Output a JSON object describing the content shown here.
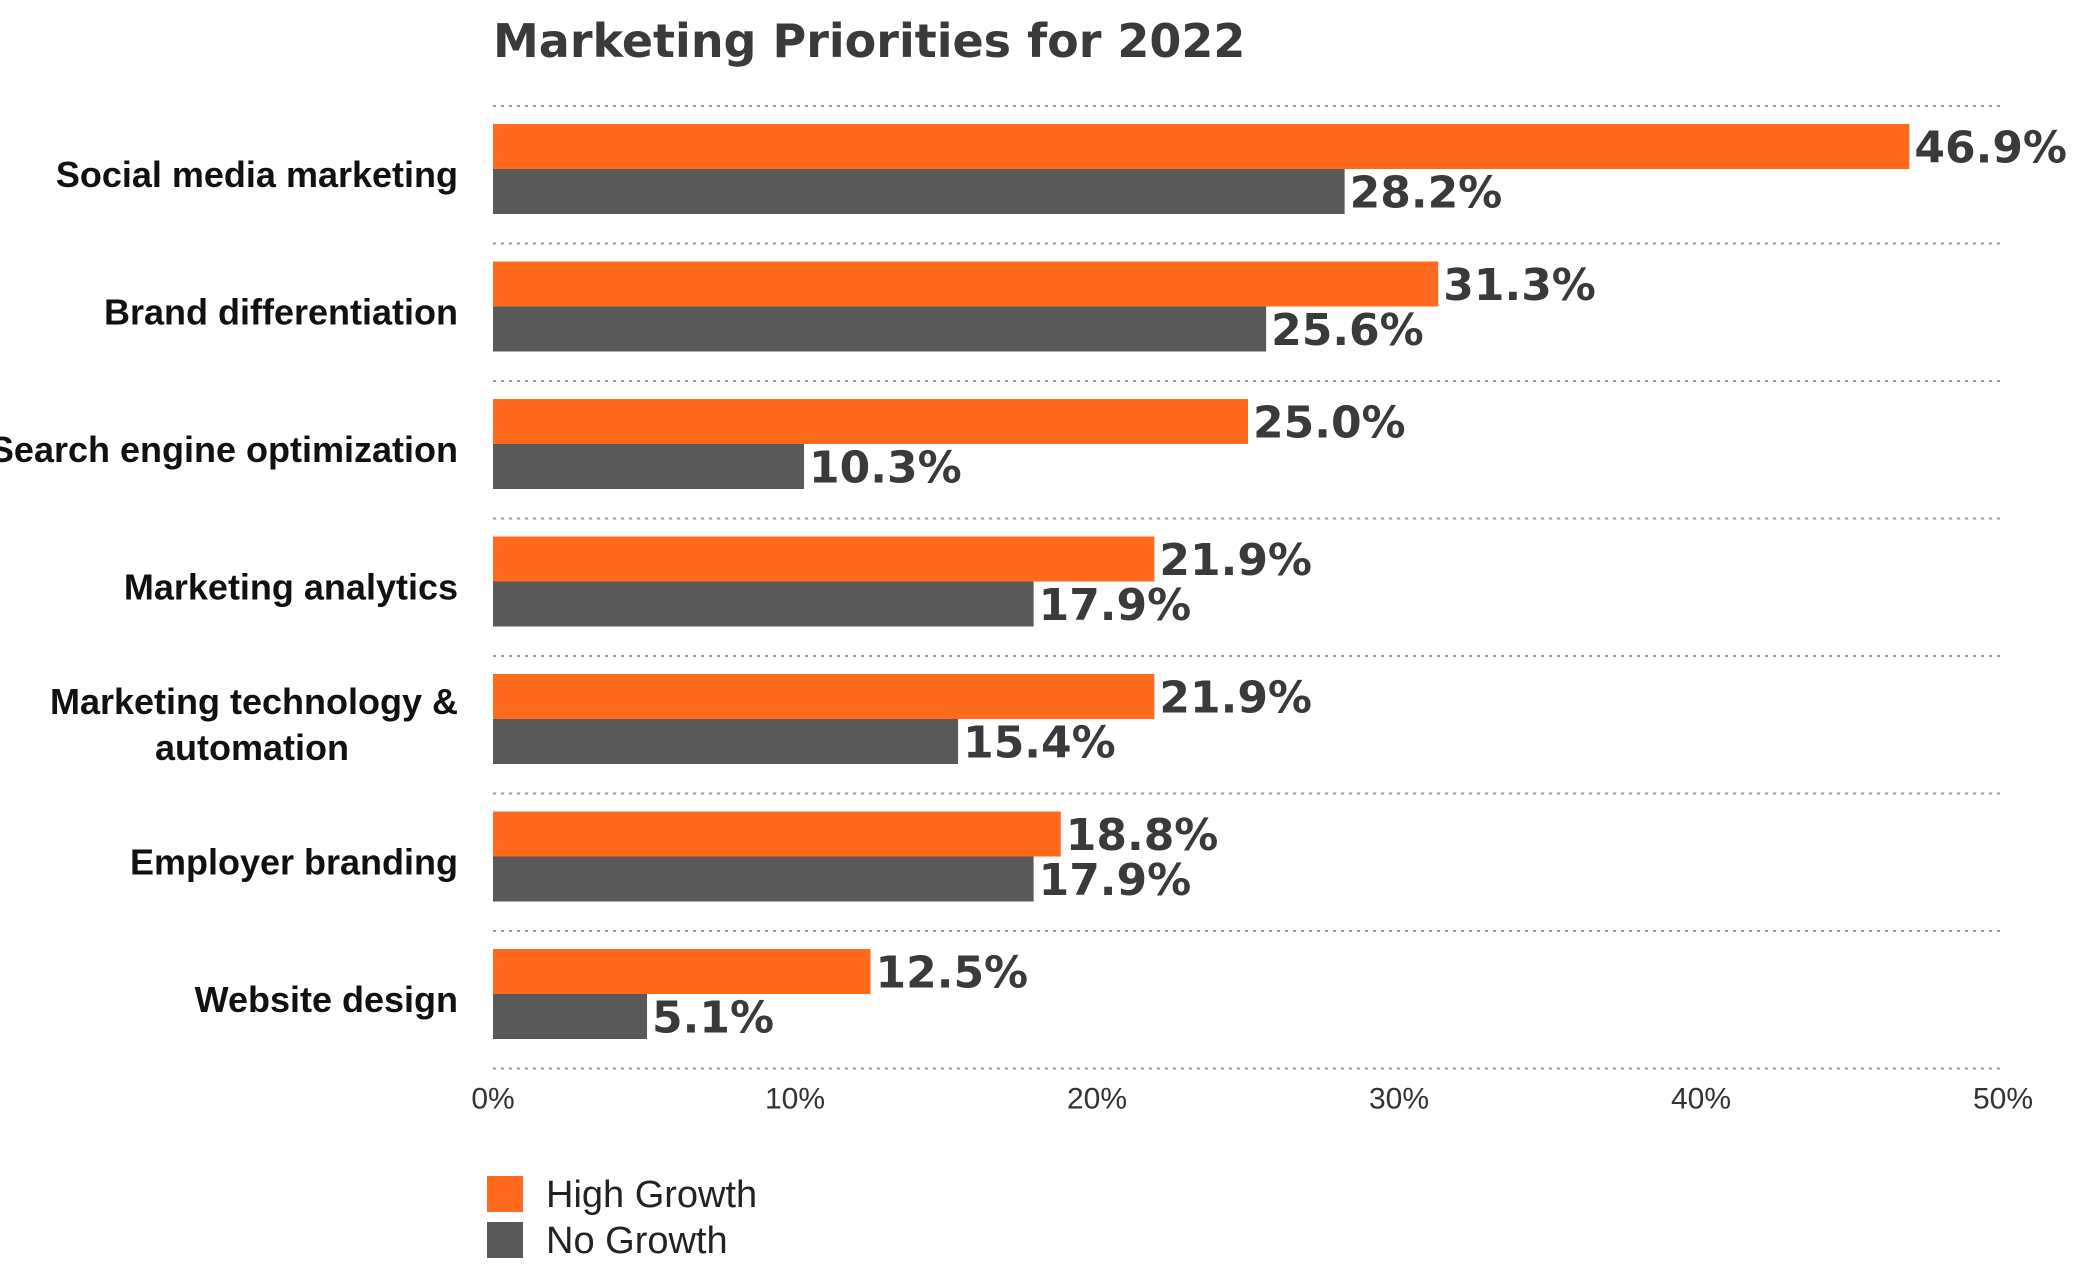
{
  "chart_data": {
    "type": "bar",
    "orientation": "horizontal",
    "title": "Marketing Priorities for 2022",
    "categories": [
      "Social media marketing",
      "Brand differentiation",
      "Search engine optimization",
      "Marketing analytics",
      "Marketing technology & automation",
      "Employer branding",
      "Website design"
    ],
    "series": [
      {
        "name": "High Growth",
        "color": "#ff6a1f",
        "values": [
          46.9,
          31.3,
          25.0,
          21.9,
          21.9,
          18.8,
          12.5
        ],
        "labels": [
          "46.9%",
          "31.3%",
          "25.0%",
          "21.9%",
          "21.9%",
          "18.8%",
          "12.5%"
        ]
      },
      {
        "name": "No Growth",
        "color": "#595959",
        "values": [
          28.2,
          25.6,
          10.3,
          17.9,
          15.4,
          17.9,
          5.1
        ],
        "labels": [
          "28.2%",
          "25.6%",
          "10.3%",
          "17.9%",
          "15.4%",
          "17.9%",
          "5.1%"
        ]
      }
    ],
    "xlim": [
      0,
      50
    ],
    "xticks": [
      0,
      10,
      20,
      30,
      40,
      50
    ],
    "xtick_labels": [
      "0%",
      "10%",
      "20%",
      "30%",
      "40%",
      "50%"
    ],
    "xlabel": "",
    "ylabel": "",
    "grid": "horizontal dotted separators between categories",
    "legend": {
      "position": "bottom-left",
      "entries": [
        "High Growth",
        "No Growth"
      ]
    }
  }
}
